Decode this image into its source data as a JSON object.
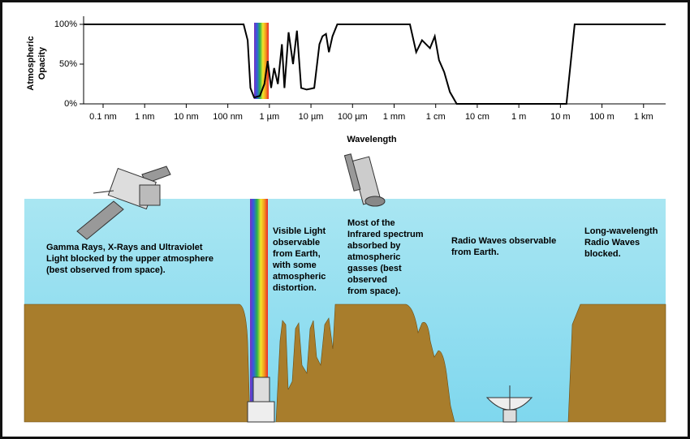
{
  "chart_data": {
    "type": "line",
    "x_label": "Wavelength",
    "y_label": [
      "Atmospheric",
      "Opacity"
    ],
    "log_x": true,
    "color": "#000000",
    "xlim": [
      3.4e-11,
      3400
    ],
    "ylim": [
      0,
      100
    ],
    "xticks": [
      {
        "value": 1e-10,
        "label": "0.1 nm"
      },
      {
        "value": 1e-09,
        "label": "1 nm"
      },
      {
        "value": 1e-08,
        "label": "10 nm"
      },
      {
        "value": 1e-07,
        "label": "100 nm"
      },
      {
        "value": 1e-06,
        "label": "1 µm"
      },
      {
        "value": 1e-05,
        "label": "10 µm"
      },
      {
        "value": 0.0001,
        "label": "100 µm"
      },
      {
        "value": 0.001,
        "label": "1 mm"
      },
      {
        "value": 0.01,
        "label": "1 cm"
      },
      {
        "value": 0.1,
        "label": "10 cm"
      },
      {
        "value": 1,
        "label": "1 m"
      },
      {
        "value": 10,
        "label": "10 m"
      },
      {
        "value": 100,
        "label": "100 m"
      },
      {
        "value": 1000,
        "label": "1 km"
      }
    ],
    "yticks": [
      {
        "value": 0,
        "label": "0%"
      },
      {
        "value": 50,
        "label": "50%"
      },
      {
        "value": 100,
        "label": "100%"
      }
    ],
    "x": [
      3.4e-11,
      2.4e-07,
      3e-07,
      3.5e-07,
      4.3e-07,
      5.9e-07,
      7.6e-07,
      9.1e-07,
      1.1e-06,
      1.3e-06,
      1.6e-06,
      2e-06,
      2.3e-06,
      2.9e-06,
      3.7e-06,
      4.6e-06,
      5.8e-06,
      7.9e-06,
      1.2e-05,
      1.6e-05,
      1.9e-05,
      2.3e-05,
      2.7e-05,
      3.3e-05,
      4.3e-05,
      0.0024,
      0.0034,
      0.0047,
      0.0073,
      0.0095,
      0.012,
      0.016,
      0.022,
      0.032,
      14,
      22,
      3400
    ],
    "values": [
      100,
      100,
      80,
      20,
      8,
      10,
      25,
      54,
      20,
      45,
      25,
      75,
      20,
      90,
      50,
      92,
      20,
      18,
      20,
      75,
      85,
      88,
      65,
      85,
      100,
      100,
      65,
      80,
      70,
      85,
      55,
      40,
      15,
      0,
      0,
      100,
      100
    ]
  },
  "illustration": {
    "labels": [
      [
        "Gamma Rays, X-Rays and Ultraviolet",
        "Light blocked by the upper atmosphere",
        "(best observed from space)."
      ],
      [
        "Visible Light",
        "observable",
        "from Earth,",
        "with some",
        "atmospheric",
        "distortion."
      ],
      [
        "Most of the",
        "Infrared spectrum",
        "absorbed by",
        "atmospheric",
        "gasses (best",
        "observed",
        "from space)."
      ],
      [
        "Radio Waves observable",
        "from Earth."
      ],
      [
        "Long-wavelength",
        "Radio Waves",
        "blocked."
      ]
    ]
  }
}
